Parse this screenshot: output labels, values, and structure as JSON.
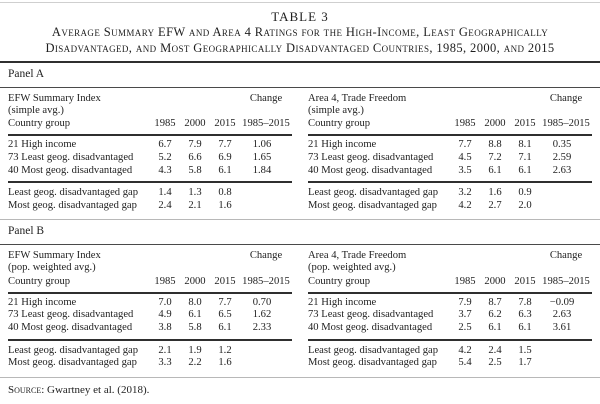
{
  "title": {
    "label": "TABLE 3",
    "caption_lines": [
      "Average Summary EFW and Area 4 Ratings for the High-Income, Least Geographically",
      "Disadvantaged, and Most Geographically Disadvantaged Countries, 1985, 2000, and 2015"
    ]
  },
  "source": {
    "label": "Source:",
    "text": "Gwartney et al. (2018)."
  },
  "panels": [
    {
      "label": "Panel A",
      "tables": [
        {
          "title": "EFW Summary Index",
          "subtitle": "(simple avg.)",
          "change_label": "Change",
          "row_header": "Country group",
          "col_headers": [
            "1985",
            "2000",
            "2015",
            "1985–2015"
          ],
          "rows": [
            {
              "label": "21 High income",
              "v": [
                "6.7",
                "7.9",
                "7.7",
                "1.06"
              ]
            },
            {
              "label": "73 Least geog. disadvantaged",
              "v": [
                "5.2",
                "6.6",
                "6.9",
                "1.65"
              ]
            },
            {
              "label": "40 Most geog. disadvantaged",
              "v": [
                "4.3",
                "5.8",
                "6.1",
                "1.84"
              ]
            }
          ],
          "gap_rows": [
            {
              "label": "Least geog. disadvantaged gap",
              "v": [
                "1.4",
                "1.3",
                "0.8",
                ""
              ]
            },
            {
              "label": "Most geog. disadvantaged gap",
              "v": [
                "2.4",
                "2.1",
                "1.6",
                ""
              ]
            }
          ]
        },
        {
          "title": "Area 4, Trade Freedom",
          "subtitle": "(simple avg.)",
          "change_label": "Change",
          "row_header": "Country group",
          "col_headers": [
            "1985",
            "2000",
            "2015",
            "1985–2015"
          ],
          "rows": [
            {
              "label": "21 High income",
              "v": [
                "7.7",
                "8.8",
                "8.1",
                "0.35"
              ]
            },
            {
              "label": "73 Least geog. disadvantaged",
              "v": [
                "4.5",
                "7.2",
                "7.1",
                "2.59"
              ]
            },
            {
              "label": "40 Most geog. disadvantaged",
              "v": [
                "3.5",
                "6.1",
                "6.1",
                "2.63"
              ]
            }
          ],
          "gap_rows": [
            {
              "label": "Least geog. disadvantaged gap",
              "v": [
                "3.2",
                "1.6",
                "0.9",
                ""
              ]
            },
            {
              "label": "Most geog. disadvantaged gap",
              "v": [
                "4.2",
                "2.7",
                "2.0",
                ""
              ]
            }
          ]
        }
      ]
    },
    {
      "label": "Panel B",
      "tables": [
        {
          "title": "EFW Summary Index",
          "subtitle": "(pop. weighted avg.)",
          "change_label": "Change",
          "row_header": "Country group",
          "col_headers": [
            "1985",
            "2000",
            "2015",
            "1985–2015"
          ],
          "rows": [
            {
              "label": "21 High income",
              "v": [
                "7.0",
                "8.0",
                "7.7",
                "0.70"
              ]
            },
            {
              "label": "73 Least geog. disadvantaged",
              "v": [
                "4.9",
                "6.1",
                "6.5",
                "1.62"
              ]
            },
            {
              "label": "40 Most geog. disadvantaged",
              "v": [
                "3.8",
                "5.8",
                "6.1",
                "2.33"
              ]
            }
          ],
          "gap_rows": [
            {
              "label": "Least geog. disadvantaged gap",
              "v": [
                "2.1",
                "1.9",
                "1.2",
                ""
              ]
            },
            {
              "label": "Most geog. disadvantaged gap",
              "v": [
                "3.3",
                "2.2",
                "1.6",
                ""
              ]
            }
          ]
        },
        {
          "title": "Area 4, Trade Freedom",
          "subtitle": "(pop. weighted avg.)",
          "change_label": "Change",
          "row_header": "Country group",
          "col_headers": [
            "1985",
            "2000",
            "2015",
            "1985–2015"
          ],
          "rows": [
            {
              "label": "21 High income",
              "v": [
                "7.9",
                "8.7",
                "7.8",
                "−0.09"
              ]
            },
            {
              "label": "73 Least geog. disadvantaged",
              "v": [
                "3.7",
                "6.2",
                "6.3",
                "2.63"
              ]
            },
            {
              "label": "40 Most geog. disadvantaged",
              "v": [
                "2.5",
                "6.1",
                "6.1",
                "3.61"
              ]
            }
          ],
          "gap_rows": [
            {
              "label": "Least geog. disadvantaged gap",
              "v": [
                "4.2",
                "2.4",
                "1.5",
                ""
              ]
            },
            {
              "label": "Most geog. disadvantaged gap",
              "v": [
                "5.4",
                "2.5",
                "1.7",
                ""
              ]
            }
          ]
        }
      ]
    }
  ]
}
